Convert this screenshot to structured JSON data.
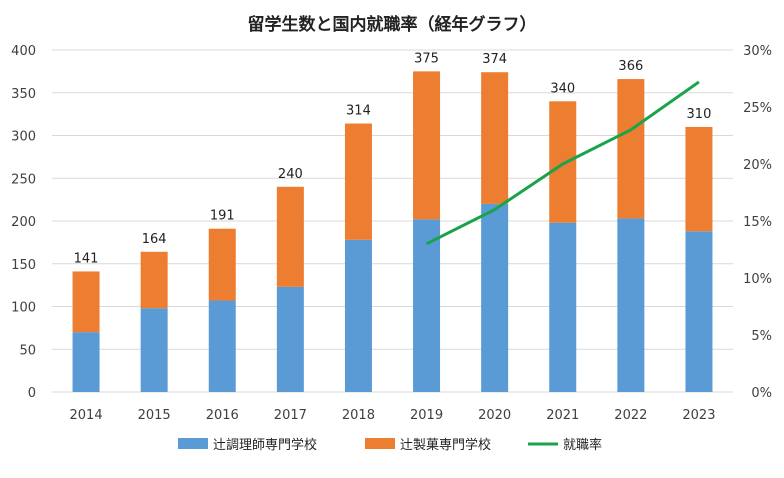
{
  "chart_data": {
    "type": "bar",
    "stacked": true,
    "title": "留学生数と国内就職率（経年グラフ）",
    "categories": [
      "2014",
      "2015",
      "2016",
      "2017",
      "2018",
      "2019",
      "2020",
      "2021",
      "2022",
      "2023"
    ],
    "series": [
      {
        "name": "辻調理師専門学校",
        "type": "bar",
        "axis": "left",
        "color": "#5b9bd5",
        "values": [
          70,
          98,
          107,
          123,
          178,
          202,
          220,
          198,
          203,
          188
        ]
      },
      {
        "name": "辻製菓専門学校",
        "type": "bar",
        "axis": "left",
        "color": "#ed7d31",
        "values": [
          71,
          66,
          84,
          117,
          136,
          173,
          154,
          142,
          163,
          122
        ]
      },
      {
        "name": "就職率",
        "type": "line",
        "axis": "right",
        "color": "#1aa34a",
        "values": [
          null,
          null,
          null,
          null,
          null,
          13.0,
          16.0,
          20.0,
          23.0,
          27.2
        ]
      }
    ],
    "totals": [
      141,
      164,
      191,
      240,
      314,
      375,
      374,
      340,
      366,
      310
    ],
    "ylim": [
      0,
      400
    ],
    "yticks": [
      "0",
      "50",
      "100",
      "150",
      "200",
      "250",
      "300",
      "350",
      "400"
    ],
    "y2lim": [
      0,
      30
    ],
    "y2ticks": [
      "0%",
      "5%",
      "10%",
      "15%",
      "20%",
      "25%",
      "30%"
    ],
    "grid": true,
    "legend_position": "bottom"
  }
}
